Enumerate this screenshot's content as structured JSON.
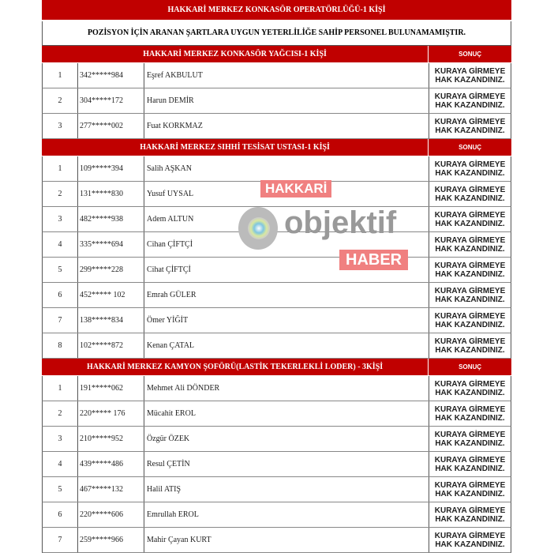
{
  "title": "HAKKARİ MERKEZ KONKASÖR OPERATÖRLÜĞÜ-1 KİŞİ",
  "message": "POZİSYON  İÇİN ARANAN ŞARTLARA UYGUN YETERLİLİĞE SAHİP PERSONEL BULUNAMAMIŞTIR.",
  "result_header": "SONUÇ",
  "result_text": "KURAYA GİRMEYE HAK KAZANDINIZ.",
  "watermark": {
    "brand": "objektif",
    "top": "HAKKARİ",
    "bottom": "HABER"
  },
  "colors": {
    "header_red": "#c00000",
    "watermark_red": "#f08080"
  },
  "sections": [
    {
      "title": "HAKKARİ MERKEZ KONKASÖR YAĞCISI-1 KİŞİ",
      "rows": [
        {
          "no": "1",
          "id": "342*****984",
          "name": "Eşref AKBULUT"
        },
        {
          "no": "2",
          "id": "304*****172",
          "name": "Harun DEMİR"
        },
        {
          "no": "3",
          "id": "277*****002",
          "name": "Fuat KORKMAZ"
        }
      ]
    },
    {
      "title": "HAKKARİ MERKEZ SIHHİ TESİSAT USTASI-1 KİŞİ",
      "rows": [
        {
          "no": "1",
          "id": "109*****394",
          "name": "Salih AŞKAN"
        },
        {
          "no": "2",
          "id": "131*****830",
          "name": "Yusuf UYSAL"
        },
        {
          "no": "3",
          "id": "482*****938",
          "name": "Adem ALTUN"
        },
        {
          "no": "4",
          "id": "335*****694",
          "name": "Cihan ÇİFTÇİ"
        },
        {
          "no": "5",
          "id": "299*****228",
          "name": "Cihat ÇİFTÇİ"
        },
        {
          "no": "6",
          "id": "452***** 102",
          "name": "Emrah GÜLER"
        },
        {
          "no": "7",
          "id": "138*****834",
          "name": "Ömer YİĞİT"
        },
        {
          "no": "8",
          "id": "102*****872",
          "name": "Kenan ÇATAL"
        }
      ]
    },
    {
      "title": "HAKKARİ MERKEZ KAMYON ŞOFÖRÜ(LASTİK TEKERLEKLİ  LODER) - 3KİŞİ",
      "rows": [
        {
          "no": "1",
          "id": "191*****062",
          "name": "Mehmet Ali DÖNDER"
        },
        {
          "no": "2",
          "id": "220***** 176",
          "name": "Mücahit EROL"
        },
        {
          "no": "3",
          "id": "210*****952",
          "name": "Özgür ÖZEK"
        },
        {
          "no": "4",
          "id": "439*****486",
          "name": "Resul ÇETİN"
        },
        {
          "no": "5",
          "id": "467*****132",
          "name": "Halil ATIŞ"
        },
        {
          "no": "6",
          "id": "220*****606",
          "name": "Emrullah EROL"
        },
        {
          "no": "7",
          "id": "259*****966",
          "name": "Mahir Çayan KURT"
        }
      ]
    }
  ]
}
